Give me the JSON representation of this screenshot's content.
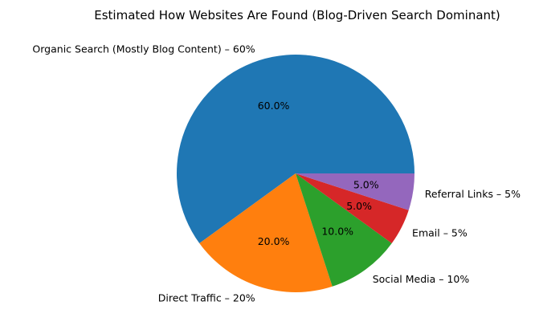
{
  "chart_data": {
    "type": "pie",
    "title": "Estimated How Websites Are Found (Blog-Driven Search Dominant)",
    "slices": [
      {
        "label": "Organic Search (Mostly Blog Content) – 60%",
        "value": 60,
        "pct_label": "60.0%",
        "color": "#1f77b4"
      },
      {
        "label": "Direct Traffic – 20%",
        "value": 20,
        "pct_label": "20.0%",
        "color": "#ff7f0e"
      },
      {
        "label": "Social Media – 10%",
        "value": 10,
        "pct_label": "10.0%",
        "color": "#2ca02c"
      },
      {
        "label": "Email – 5%",
        "value": 5,
        "pct_label": "5.0%",
        "color": "#d62728"
      },
      {
        "label": "Referral Links – 5%",
        "value": 5,
        "pct_label": "5.0%",
        "color": "#9467bd"
      }
    ],
    "start_angle_deg": 0,
    "direction": "counterclockwise",
    "legend": "none"
  }
}
